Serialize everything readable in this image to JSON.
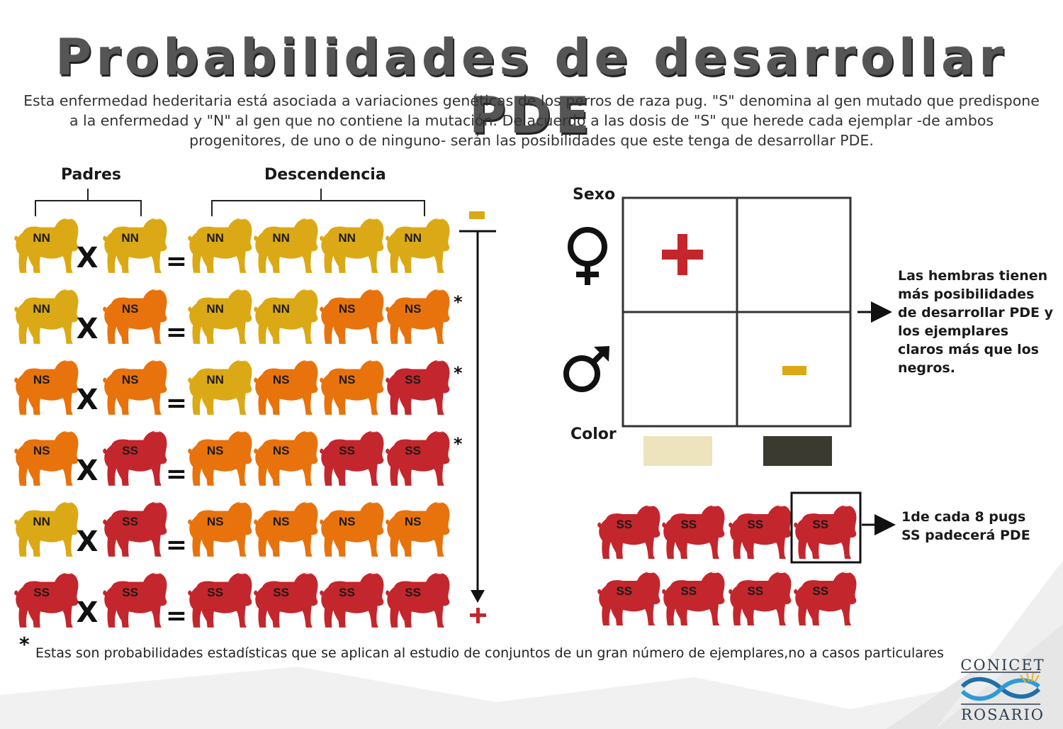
{
  "title": "Probabilidades de desarrollar PDE",
  "intro": "Esta enfermedad hederitaria está asociada a variaciones genéticas de los perros de raza pug. \"S\" denomina al gen mutado que predispone a la enfermedad y \"N\" al gen que no contiene la mutación. De acuerdo a las dosis de \"S\" que herede cada ejemplar -de ambos progenitores, de uno o de ninguno- serán las posibilidades que este tenga de desarrollar PDE.",
  "labels": {
    "padres": "Padres",
    "descendencia": "Descendencia",
    "sexo": "Sexo",
    "color": "Color",
    "minus": "-",
    "plus": "+",
    "x": "X",
    "eq": "=",
    "asterisk": "*"
  },
  "colors": {
    "NN": "#dba915",
    "NS": "#e8720c",
    "SS": "#c3262c",
    "light": "#ede3bc",
    "dark": "#3a3a30",
    "plus_red": "#c3262c",
    "minus_yellow": "#dba915"
  },
  "crosses": [
    {
      "parents": [
        "NN",
        "NN"
      ],
      "offspring": [
        "NN",
        "NN",
        "NN",
        "NN"
      ],
      "asterisk": false
    },
    {
      "parents": [
        "NN",
        "NS"
      ],
      "offspring": [
        "NN",
        "NN",
        "NS",
        "NS"
      ],
      "asterisk": true
    },
    {
      "parents": [
        "NS",
        "NS"
      ],
      "offspring": [
        "NN",
        "NS",
        "NS",
        "SS"
      ],
      "asterisk": true
    },
    {
      "parents": [
        "NS",
        "SS"
      ],
      "offspring": [
        "NS",
        "NS",
        "SS",
        "SS"
      ],
      "asterisk": true
    },
    {
      "parents": [
        "NN",
        "SS"
      ],
      "offspring": [
        "NS",
        "NS",
        "NS",
        "NS"
      ],
      "asterisk": false
    },
    {
      "parents": [
        "SS",
        "SS"
      ],
      "offspring": [
        "SS",
        "SS",
        "SS",
        "SS"
      ],
      "asterisk": false
    }
  ],
  "grid": {
    "female_symbol": "♀",
    "male_symbol": "♂",
    "cell_plus": "+",
    "cell_minus": "-"
  },
  "hembras_note": "Las hembras tienen más posibilidades de desarrollar PDE y los ejemplares claros más que los negros.",
  "ss_group": {
    "labels": [
      "SS",
      "SS",
      "SS",
      "SS",
      "SS",
      "SS",
      "SS",
      "SS"
    ],
    "highlighted_index": 3
  },
  "ss_note": "1de cada 8 pugs SS padecerá PDE",
  "footnote": "Estas son probabilidades estadísticas que se aplican al estudio de conjuntos de un gran número de ejemplares,no a casos particulares",
  "logo": {
    "top": "CONICET",
    "bottom": "ROSARIO"
  }
}
